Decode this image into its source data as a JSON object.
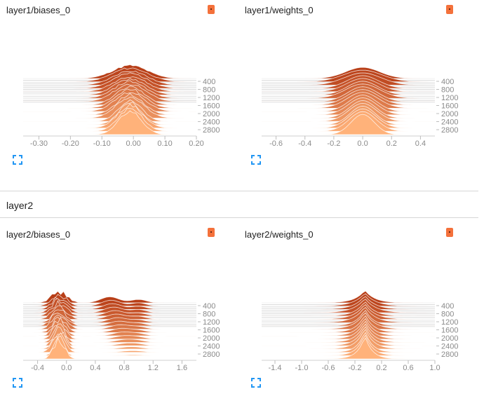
{
  "section": {
    "title": "layer2"
  },
  "colors": {
    "accent": "#f4713b",
    "tick": "#8a8a8a",
    "expand": "#2196f3",
    "dark": "#b83e17",
    "light": "#ffb27a"
  },
  "cards": [
    {
      "title": "layer1/biases_0",
      "x_ticks": [
        "-0.30",
        "-0.20",
        "-0.10",
        "0.00",
        "0.10",
        "0.20"
      ],
      "x_range": [
        -0.35,
        0.2
      ],
      "step_ticks": [
        "400",
        "800",
        "1200",
        "1600",
        "2000",
        "2400",
        "2800"
      ],
      "shape": "wide_peak",
      "center": -0.01,
      "spread": 0.05,
      "peak": 0.95
    },
    {
      "title": "layer1/weights_0",
      "x_ticks": [
        "-0.6",
        "-0.4",
        "-0.2",
        "0.0",
        "0.2",
        "0.4"
      ],
      "x_range": [
        -0.7,
        0.5
      ],
      "step_ticks": [
        "400",
        "800",
        "1200",
        "1600",
        "2000",
        "2400",
        "2800"
      ],
      "shape": "bell",
      "center": 0.0,
      "spread": 0.12,
      "peak": 0.75
    },
    {
      "title": "layer2/biases_0",
      "x_ticks": [
        "-0.4",
        "0.0",
        "0.4",
        "0.8",
        "1.2",
        "1.6"
      ],
      "x_range": [
        -0.6,
        1.8
      ],
      "step_ticks": [
        "400",
        "800",
        "1200",
        "1600",
        "2000",
        "2400",
        "2800"
      ],
      "shape": "multi",
      "center": -0.1,
      "spread": 0.1,
      "peak": 0.9
    },
    {
      "title": "layer2/weights_0",
      "x_ticks": [
        "-1.4",
        "-1.0",
        "-0.6",
        "-0.2",
        "0.2",
        "0.6",
        "1.0"
      ],
      "x_range": [
        -1.6,
        1.0
      ],
      "step_ticks": [
        "400",
        "800",
        "1200",
        "1600",
        "2000",
        "2400",
        "2800"
      ],
      "shape": "sharp",
      "center": -0.05,
      "spread": 0.15,
      "peak": 0.85
    }
  ]
}
